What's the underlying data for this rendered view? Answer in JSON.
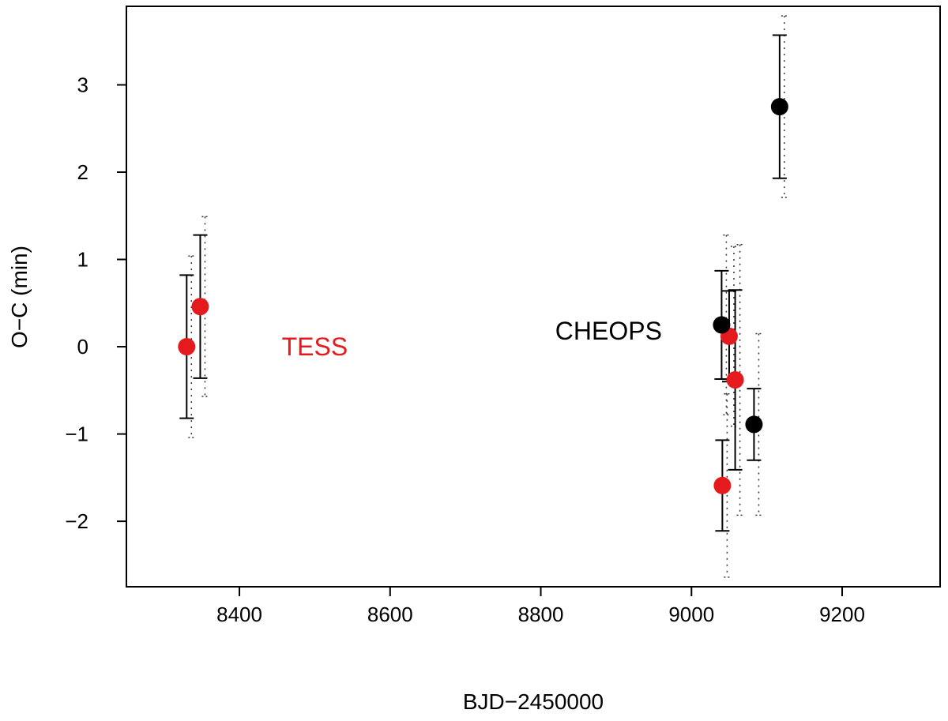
{
  "chart_data": {
    "type": "scatter",
    "title": "",
    "xlabel": "BJD−2450000",
    "ylabel": "O−C (min)",
    "xlim": [
      8250,
      9330
    ],
    "ylim": [
      -2.75,
      3.9
    ],
    "xticks": [
      {
        "value": 8400,
        "label": "8400"
      },
      {
        "value": 8600,
        "label": "8600"
      },
      {
        "value": 8800,
        "label": "8800"
      },
      {
        "value": 9000,
        "label": "9000"
      },
      {
        "value": 9200,
        "label": "9200"
      }
    ],
    "yticks": [
      {
        "value": -2,
        "label": "−2"
      },
      {
        "value": -1,
        "label": "−1"
      },
      {
        "value": 0,
        "label": "0"
      },
      {
        "value": 1,
        "label": "1"
      },
      {
        "value": 2,
        "label": "2"
      },
      {
        "value": 3,
        "label": "3"
      }
    ],
    "grid": false,
    "series": [
      {
        "color": "#e41a1c",
        "points": [
          {
            "x": 8330,
            "y": 0.0,
            "err": 0.82,
            "err_wide": 1.04
          },
          {
            "x": 8348,
            "y": 0.46,
            "err": 0.82,
            "err_wide": 1.03
          },
          {
            "x": 9041,
            "y": -1.59,
            "err": 0.52,
            "err_wide": 1.05
          },
          {
            "x": 9050,
            "y": 0.12,
            "err": 0.52,
            "err_wide": 1.03
          },
          {
            "x": 9058,
            "y": -0.38,
            "err": 1.03,
            "err_wide": 1.55
          }
        ]
      },
      {
        "color": "#000000",
        "points": [
          {
            "x": 9040,
            "y": 0.25,
            "err": 0.62,
            "err_wide": 1.03
          },
          {
            "x": 9083,
            "y": -0.89,
            "err": 0.41,
            "err_wide": 1.04
          },
          {
            "x": 9117,
            "y": 2.75,
            "err": 0.82,
            "err_wide": 1.04
          }
        ]
      }
    ],
    "annotations": [
      {
        "text": "TESS",
        "x": 8500,
        "y": 0.0,
        "color": "#e41a1c"
      },
      {
        "text": "CHEOPS",
        "x": 8890,
        "y": 0.18,
        "color": "#000000"
      }
    ]
  }
}
